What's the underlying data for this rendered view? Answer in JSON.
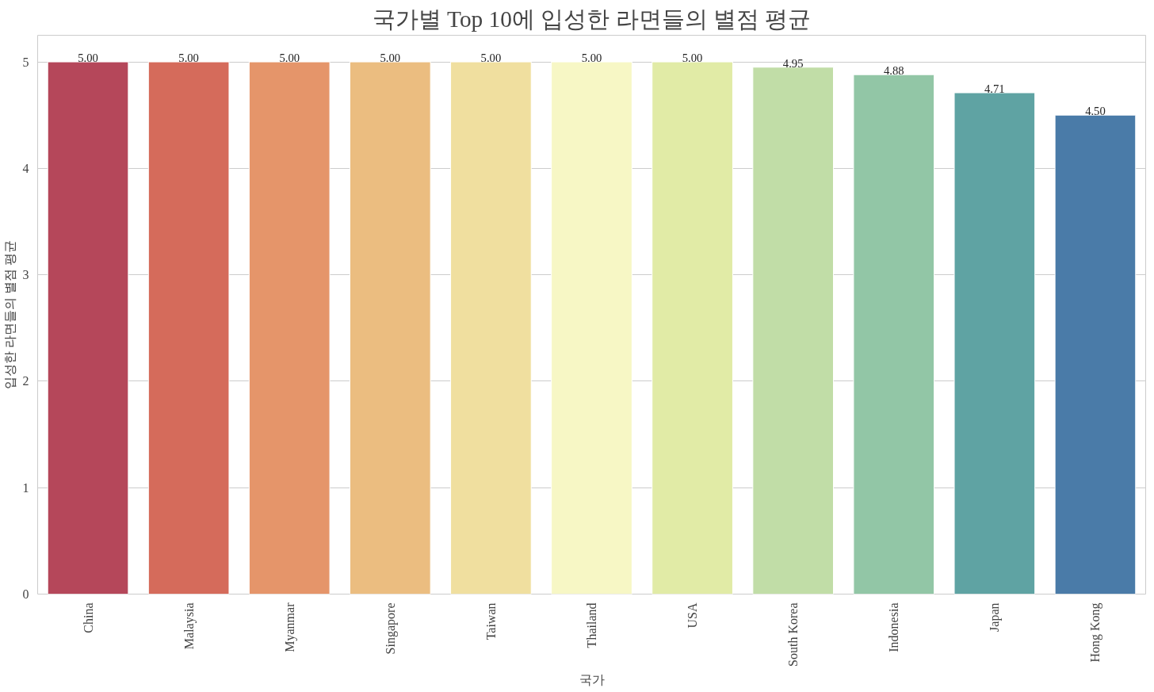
{
  "chart_data": {
    "type": "bar",
    "title": "국가별 Top 10에 입성한 라면들의 별점 평균",
    "xlabel": "국가",
    "ylabel": "입성한 라면들의 별점 평균",
    "categories": [
      "China",
      "Malaysia",
      "Myanmar",
      "Singapore",
      "Taiwan",
      "Thailand",
      "USA",
      "South Korea",
      "Indonesia",
      "Japan",
      "Hong Kong"
    ],
    "values": [
      5.0,
      5.0,
      5.0,
      5.0,
      5.0,
      5.0,
      5.0,
      4.95,
      4.88,
      4.71,
      4.5
    ],
    "value_labels": [
      "5.00",
      "5.00",
      "5.00",
      "5.00",
      "5.00",
      "5.00",
      "5.00",
      "4.95",
      "4.88",
      "4.71",
      "4.50"
    ],
    "colors": [
      "#b5475a",
      "#d56b5b",
      "#e5956a",
      "#ebbd80",
      "#f0df9f",
      "#f7f7c5",
      "#e1eba6",
      "#c1dda7",
      "#92c6a6",
      "#5fa3a3",
      "#4a7ba8"
    ],
    "ylim": [
      0,
      5.25
    ],
    "yticks": [
      0,
      1,
      2,
      3,
      4,
      5
    ],
    "grid": "y"
  }
}
